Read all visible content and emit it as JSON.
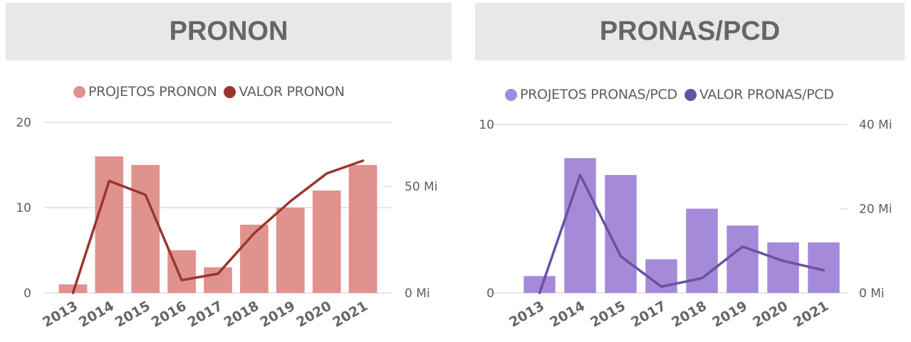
{
  "chart_data": [
    {
      "type": "bar+line",
      "title": "PRONON",
      "categories": [
        "2013",
        "2014",
        "2015",
        "2016",
        "2017",
        "2018",
        "2019",
        "2020",
        "2021"
      ],
      "series": [
        {
          "name": "PROJETOS PRONON",
          "type": "bar",
          "axis": "left",
          "color": "#e0928e",
          "values": [
            1,
            16,
            15,
            5,
            3,
            8,
            10,
            12,
            15
          ]
        },
        {
          "name": "VALOR PRONON",
          "type": "line",
          "axis": "right",
          "color": "#9b3530",
          "values": [
            0,
            52.5,
            46,
            6,
            9,
            28,
            43,
            56,
            62
          ]
        }
      ],
      "y_left": {
        "ylim": [
          0,
          20
        ],
        "ticks": [
          "0",
          "10",
          "20"
        ],
        "tick_values": [
          0,
          10,
          20
        ]
      },
      "y_right": {
        "ylim": [
          0,
          80
        ],
        "ticks": [
          "0 Mi",
          "50 Mi"
        ],
        "tick_values": [
          0,
          50
        ]
      },
      "legend": "top",
      "grid": true
    },
    {
      "type": "bar+line",
      "title": "PRONAS/PCD",
      "categories": [
        "2013",
        "2014",
        "2015",
        "2017",
        "2018",
        "2019",
        "2020",
        "2021"
      ],
      "series": [
        {
          "name": "PROJETOS PRONAS/PCD",
          "type": "bar",
          "axis": "left",
          "color": "#a48ad8",
          "values": [
            1,
            8,
            7,
            2,
            5,
            4,
            3,
            3
          ]
        },
        {
          "name": "VALOR PRONAS/PCD",
          "type": "line",
          "axis": "right",
          "color": "#6a52a0",
          "values": [
            0,
            28,
            8.7,
            1.5,
            3.5,
            11,
            7.6,
            5.4
          ]
        }
      ],
      "y_left": {
        "ylim": [
          0,
          10
        ],
        "ticks": [
          "0",
          "10"
        ],
        "tick_values": [
          0,
          10
        ]
      },
      "y_right": {
        "ylim": [
          0,
          40
        ],
        "ticks": [
          "0 Mi",
          "20 Mi",
          "40 Mi"
        ],
        "tick_values": [
          0,
          20,
          40
        ]
      },
      "legend": "top",
      "grid": true
    }
  ]
}
